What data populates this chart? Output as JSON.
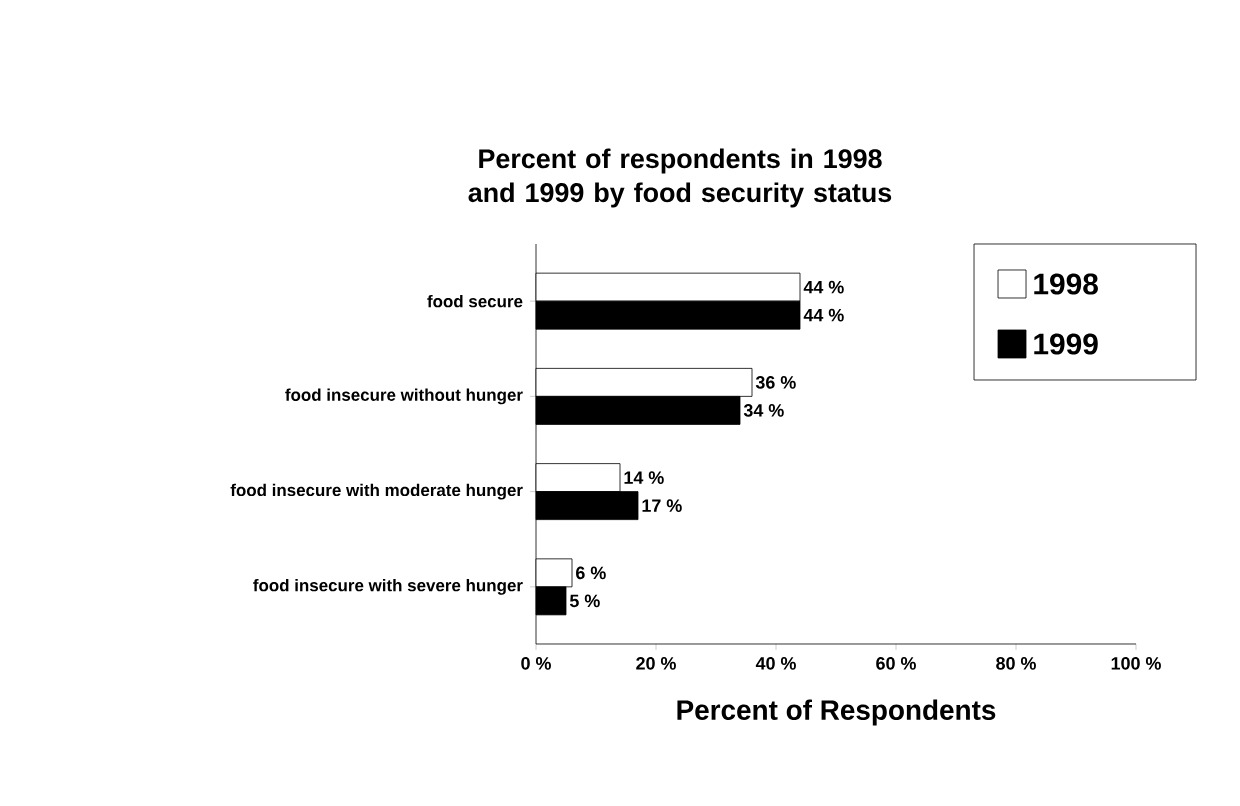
{
  "chart_data": {
    "type": "bar",
    "orientation": "horizontal",
    "title": "Percent of respondents in 1998 and 1999 by food security status",
    "xlabel": "Percent of Respondents",
    "categories": [
      "food secure",
      "food insecure without hunger",
      "food insecure with moderate hunger",
      "food insecure with severe hunger"
    ],
    "series": [
      {
        "name": "1998",
        "color": "#ffffff",
        "values": [
          44,
          36,
          14,
          6
        ],
        "value_labels": [
          "44 %",
          "36 %",
          "14 %",
          "6 %"
        ]
      },
      {
        "name": "1999",
        "color": "#000000",
        "values": [
          44,
          34,
          17,
          5
        ],
        "value_labels": [
          "44 %",
          "34 %",
          "17 %",
          "5 %"
        ]
      }
    ],
    "xlim": [
      0,
      100
    ],
    "xticks": [
      {
        "value": 0,
        "label": "0 %"
      },
      {
        "value": 20,
        "label": "20 %"
      },
      {
        "value": 40,
        "label": "40 %"
      },
      {
        "value": 60,
        "label": "60 %"
      },
      {
        "value": 80,
        "label": "80 %"
      },
      {
        "value": 100,
        "label": "100 %"
      }
    ],
    "legend": "top right",
    "grid": false
  }
}
